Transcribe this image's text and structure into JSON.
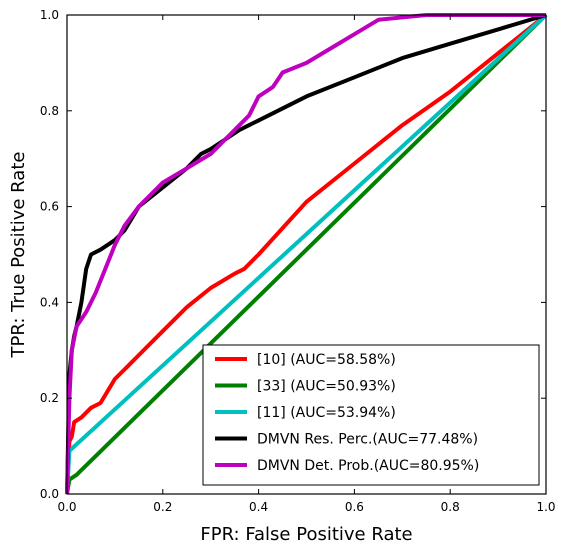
{
  "chart_data": {
    "type": "line",
    "xlabel": "FPR: False Positive Rate",
    "ylabel": "TPR: True Positive Rate",
    "xlim": [
      0,
      1
    ],
    "ylim": [
      0,
      1
    ],
    "xticks": [
      "0.0",
      "0.2",
      "0.4",
      "0.6",
      "0.8",
      "1.0"
    ],
    "yticks": [
      "0.0",
      "0.2",
      "0.4",
      "0.6",
      "0.8",
      "1.0"
    ],
    "grid": false,
    "legend_position": "bottom-right",
    "series": [
      {
        "name": "[10] (AUC=58.58%)",
        "color": "#ff0000",
        "points": [
          [
            0,
            0
          ],
          [
            0.005,
            0.11
          ],
          [
            0.01,
            0.12
          ],
          [
            0.015,
            0.15
          ],
          [
            0.03,
            0.16
          ],
          [
            0.05,
            0.18
          ],
          [
            0.07,
            0.19
          ],
          [
            0.1,
            0.24
          ],
          [
            0.12,
            0.26
          ],
          [
            0.15,
            0.29
          ],
          [
            0.2,
            0.34
          ],
          [
            0.25,
            0.39
          ],
          [
            0.3,
            0.43
          ],
          [
            0.35,
            0.46
          ],
          [
            0.37,
            0.47
          ],
          [
            0.4,
            0.5
          ],
          [
            0.5,
            0.61
          ],
          [
            0.6,
            0.69
          ],
          [
            0.7,
            0.77
          ],
          [
            0.8,
            0.84
          ],
          [
            0.9,
            0.92
          ],
          [
            1.0,
            1.0
          ]
        ]
      },
      {
        "name": "[33] (AUC=50.93%)",
        "color": "#008000",
        "points": [
          [
            0,
            0
          ],
          [
            0.005,
            0.03
          ],
          [
            0.02,
            0.04
          ],
          [
            1.0,
            1.0
          ]
        ]
      },
      {
        "name": "[11] (AUC=53.94%)",
        "color": "#00bfbf",
        "points": [
          [
            0,
            0
          ],
          [
            0.005,
            0.09
          ],
          [
            1.0,
            1.0
          ]
        ]
      },
      {
        "name": "DMVN Res. Perc.(AUC=77.48%)",
        "color": "#000000",
        "points": [
          [
            0,
            0
          ],
          [
            0.005,
            0.25
          ],
          [
            0.01,
            0.3
          ],
          [
            0.015,
            0.33
          ],
          [
            0.02,
            0.35
          ],
          [
            0.03,
            0.4
          ],
          [
            0.04,
            0.47
          ],
          [
            0.05,
            0.5
          ],
          [
            0.07,
            0.51
          ],
          [
            0.1,
            0.53
          ],
          [
            0.12,
            0.55
          ],
          [
            0.15,
            0.6
          ],
          [
            0.2,
            0.64
          ],
          [
            0.25,
            0.68
          ],
          [
            0.28,
            0.71
          ],
          [
            0.3,
            0.72
          ],
          [
            0.33,
            0.74
          ],
          [
            0.36,
            0.76
          ],
          [
            0.38,
            0.77
          ],
          [
            0.4,
            0.78
          ],
          [
            0.5,
            0.83
          ],
          [
            0.6,
            0.87
          ],
          [
            0.7,
            0.91
          ],
          [
            0.8,
            0.94
          ],
          [
            0.9,
            0.97
          ],
          [
            1.0,
            1.0
          ]
        ]
      },
      {
        "name": "DMVN Det. Prob.(AUC=80.95%)",
        "color": "#bf00bf",
        "points": [
          [
            0,
            0
          ],
          [
            0.005,
            0.2
          ],
          [
            0.01,
            0.3
          ],
          [
            0.02,
            0.35
          ],
          [
            0.04,
            0.38
          ],
          [
            0.06,
            0.42
          ],
          [
            0.08,
            0.47
          ],
          [
            0.1,
            0.52
          ],
          [
            0.12,
            0.56
          ],
          [
            0.15,
            0.6
          ],
          [
            0.18,
            0.63
          ],
          [
            0.2,
            0.65
          ],
          [
            0.25,
            0.68
          ],
          [
            0.3,
            0.71
          ],
          [
            0.32,
            0.73
          ],
          [
            0.35,
            0.76
          ],
          [
            0.38,
            0.79
          ],
          [
            0.4,
            0.83
          ],
          [
            0.43,
            0.85
          ],
          [
            0.45,
            0.88
          ],
          [
            0.5,
            0.9
          ],
          [
            0.55,
            0.93
          ],
          [
            0.6,
            0.96
          ],
          [
            0.65,
            0.99
          ],
          [
            0.75,
            1.0
          ],
          [
            1.0,
            1.0
          ]
        ]
      }
    ]
  }
}
